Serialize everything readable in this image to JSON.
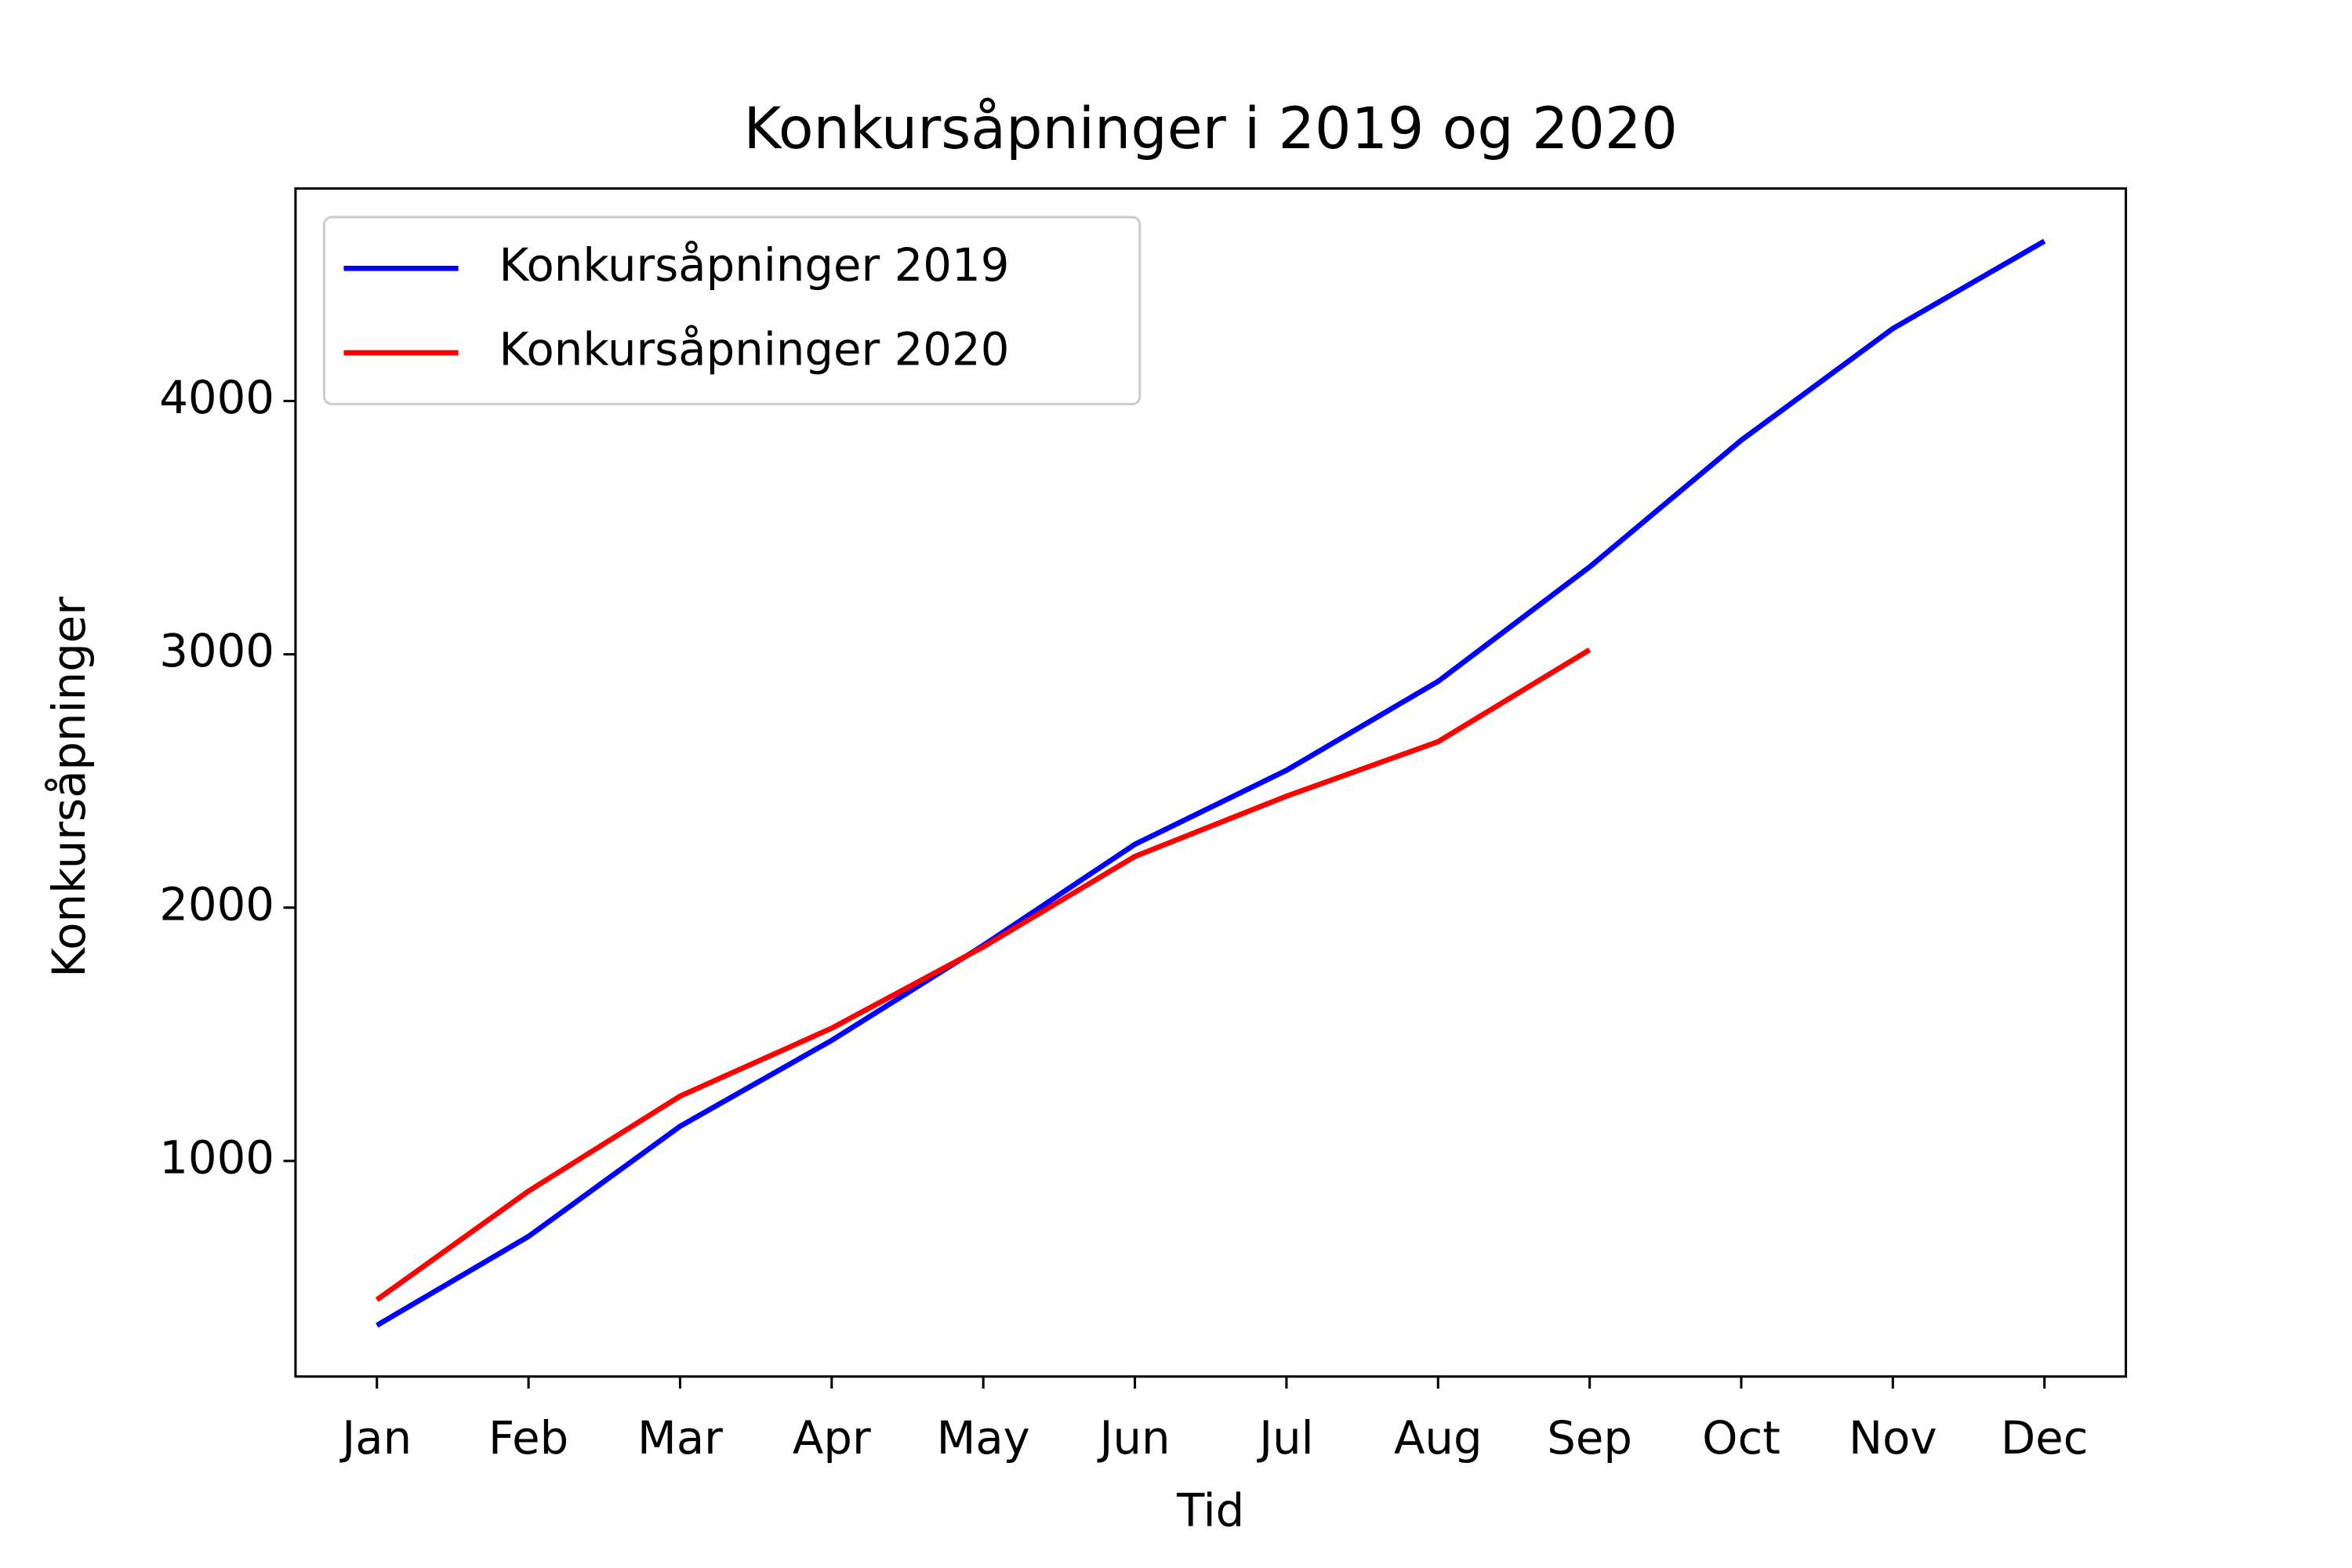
{
  "chart_data": {
    "type": "line",
    "title": "Konkursåpninger i 2019 og 2020",
    "x_label": "Tid",
    "y_label": "Konkursåpninger",
    "categories": [
      "Jan",
      "Feb",
      "Mar",
      "Apr",
      "May",
      "Jun",
      "Jul",
      "Aug",
      "Sep",
      "Oct",
      "Nov",
      "Dec"
    ],
    "series": [
      {
        "name": "Konkursåpninger 2019",
        "color": "#0000ff",
        "values": [
          351,
          702,
          1137,
          1476,
          1851,
          2250,
          2542,
          2893,
          3345,
          3845,
          4286,
          4631
        ]
      },
      {
        "name": "Konkursåpninger 2020",
        "color": "#ff0000",
        "values": [
          452,
          881,
          1256,
          1524,
          1845,
          2202,
          2440,
          2655,
          3018,
          null,
          null,
          null
        ]
      }
    ],
    "ylim": [
      149,
      4839
    ],
    "yticks": [
      1000,
      2000,
      3000,
      4000
    ],
    "grid": false,
    "legend": "upper left"
  }
}
